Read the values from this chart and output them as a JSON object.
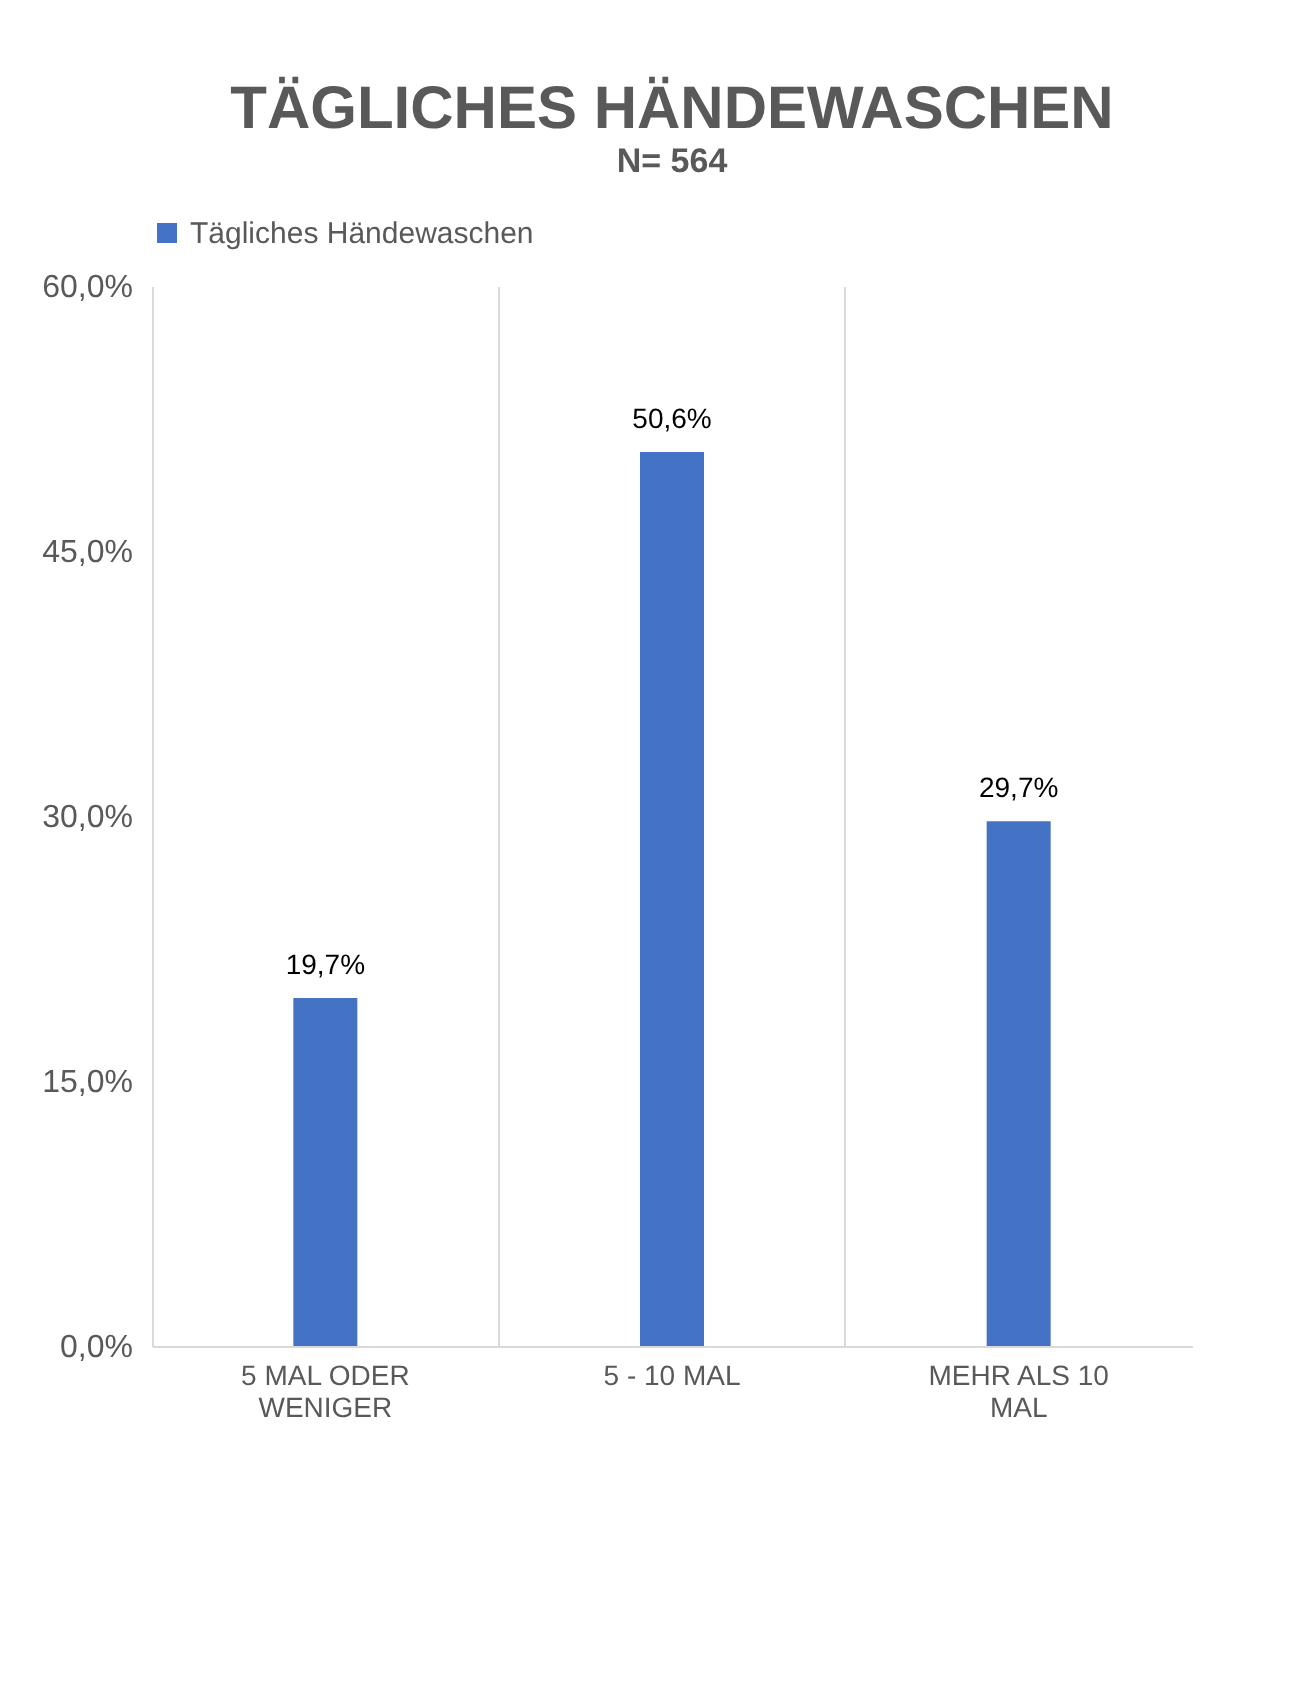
{
  "chart_data": {
    "type": "bar",
    "title": "TÄGLICHES HÄNDEWASCHEN",
    "subtitle": "N= 564",
    "categories": [
      "5 MAL ODER WENIGER",
      "5 - 10 MAL",
      "MEHR ALS 10 MAL"
    ],
    "series": [
      {
        "name": "Tägliches Händewaschen",
        "color": "#4472c4",
        "values": [
          19.7,
          50.6,
          29.7
        ],
        "value_labels": [
          "19,7%",
          "50,6%",
          "29,7%"
        ]
      }
    ],
    "ylim": [
      0,
      60
    ],
    "yticks": [
      {
        "value": 0,
        "label": "0,0%"
      },
      {
        "value": 15,
        "label": "15,0%"
      },
      {
        "value": 30,
        "label": "30,0%"
      },
      {
        "value": 45,
        "label": "45,0%"
      },
      {
        "value": 60,
        "label": "60,0%"
      }
    ],
    "grid": "x",
    "legend": "top"
  }
}
